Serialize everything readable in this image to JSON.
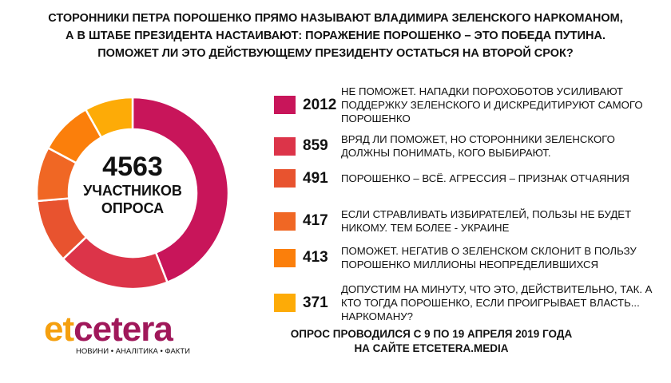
{
  "title": [
    "СТОРОННИКИ ПЕТРА ПОРОШЕНКО ПРЯМО НАЗЫВАЮТ ВЛАДИМИРА ЗЕЛЕНСКОГО НАРКОМАНОМ,",
    "А В ШТАБЕ ПРЕЗИДЕНТА НАСТАИВАЮТ: ПОРАЖЕНИЕ ПОРОШЕНКО – ЭТО ПОБЕДА ПУТИНА.",
    "ПОМОЖЕТ ЛИ ЭТО ДЕЙСТВУЮЩЕМУ ПРЕЗИДЕНТУ ОСТАТЬСЯ НА ВТОРОЙ СРОК?"
  ],
  "center": {
    "total": "4563",
    "label1": "УЧАСТНИКОВ",
    "label2": "ОПРОСА"
  },
  "chart_data": {
    "type": "pie",
    "donut": true,
    "total": 4563,
    "categories": [
      "НЕ ПОМОЖЕТ. НАПАДКИ ПОРОХОБОТОВ УСИЛИВАЮТ ПОДДЕРЖКУ ЗЕЛЕНСКОГО И ДИСКРЕДИТИРУЮТ САМОГО ПОРОШЕНКО",
      "ВРЯД ЛИ ПОМОЖЕТ, НО СТОРОННИКИ ЗЕЛЕНСКОГО ДОЛЖНЫ ПОНИМАТЬ, КОГО ВЫБИРАЮТ.",
      "ПОРОШЕНКО – ВСЁ. АГРЕССИЯ – ПРИЗНАК ОТЧАЯНИЯ",
      "ЕСЛИ СТРАВЛИВАТЬ ИЗБИРАТЕЛЕЙ, ПОЛЬЗЫ НЕ БУДЕТ НИКОМУ. ТЕМ БОЛЕЕ - УКРАИНЕ",
      "ПОМОЖЕТ. НЕГАТИВ О ЗЕЛЕНСКОМ СКЛОНИТ В ПОЛЬЗУ ПОРОШЕНКО МИЛЛИОНЫ НЕОПРЕДЕЛИВШИХСЯ",
      "ДОПУСТИМ НА МИНУТУ, ЧТО ЭТО, ДЕЙСТВИТЕЛЬНО, ТАК. А КТО ТОГДА ПОРОШЕНКО, ЕСЛИ ПРОИГРЫВАЕТ ВЛАСТЬ... НАРКОМАНУ?"
    ],
    "values": [
      2012,
      859,
      491,
      417,
      413,
      371
    ],
    "labels": [
      "2012",
      "859",
      "491",
      "417",
      "413",
      "371"
    ],
    "colors": [
      "#c8155a",
      "#dc3449",
      "#e8532f",
      "#f06724",
      "#fb7f0b",
      "#fdab07"
    ],
    "legend": "right"
  },
  "footer": [
    "ОПРОС ПРОВОДИЛСЯ С 9 ПО 19 АПРЕЛЯ 2019 ГОДА",
    "НА САЙТЕ ETCETERA.MEDIA"
  ],
  "logo": {
    "part1": "et",
    "part2": "cetera",
    "tagline": "НОВИНИ • АНАЛІТИКА • ФАКТИ",
    "color1": "#f5a00f",
    "color2": "#a0185a"
  }
}
